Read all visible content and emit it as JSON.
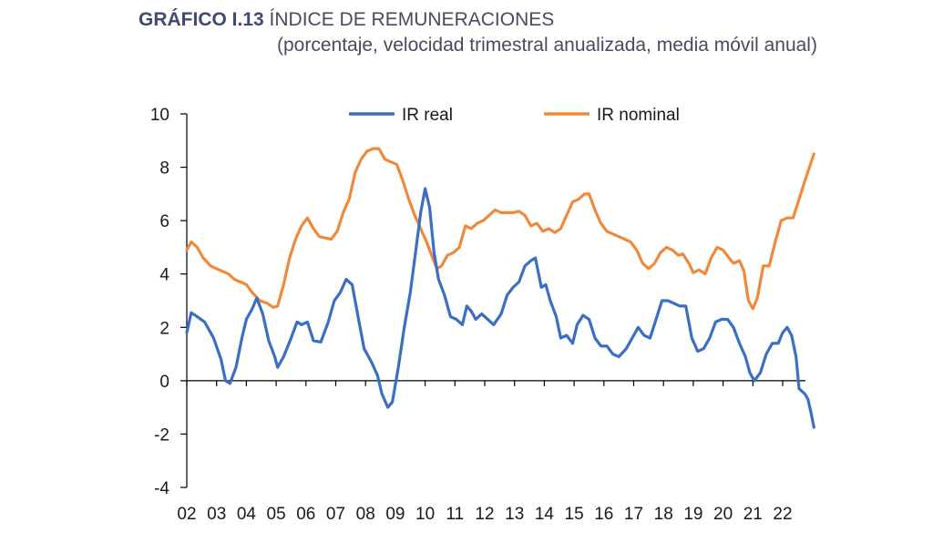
{
  "title": {
    "label": "GRÁFICO I.13",
    "text": "ÍNDICE DE REMUNERACIONES",
    "subtitle": "(porcentaje, velocidad trimestral anualizada, media móvil anual)"
  },
  "chart_data": {
    "type": "line",
    "title": "ÍNDICE DE REMUNERACIONES",
    "subtitle": "(porcentaje, velocidad trimestral anualizada, media móvil anual)",
    "xlabel": "",
    "ylabel": "",
    "ylim": [
      -4,
      10
    ],
    "xlim": [
      2002.0,
      2022.75
    ],
    "yticks": [
      "10",
      "8",
      "6",
      "4",
      "2",
      "0",
      "-2",
      "-4"
    ],
    "ytick_values": [
      10,
      8,
      6,
      4,
      2,
      0,
      -2,
      -4
    ],
    "xtick_labels": [
      "02",
      "03",
      "04",
      "05",
      "06",
      "07",
      "08",
      "09",
      "10",
      "11",
      "12",
      "13",
      "14",
      "15",
      "16",
      "17",
      "18",
      "19",
      "20",
      "21",
      "22"
    ],
    "legend_position": "top",
    "series": [
      {
        "name": "IR real",
        "color": "#3a6fc4",
        "points": [
          [
            2002.0,
            1.8
          ],
          [
            2002.15,
            2.55
          ],
          [
            2002.35,
            2.4
          ],
          [
            2002.6,
            2.2
          ],
          [
            2002.9,
            1.6
          ],
          [
            2003.15,
            0.8
          ],
          [
            2003.3,
            0.0
          ],
          [
            2003.45,
            -0.1
          ],
          [
            2003.65,
            0.5
          ],
          [
            2003.85,
            1.6
          ],
          [
            2004.0,
            2.3
          ],
          [
            2004.2,
            2.7
          ],
          [
            2004.35,
            3.1
          ],
          [
            2004.55,
            2.5
          ],
          [
            2004.75,
            1.5
          ],
          [
            2004.95,
            0.9
          ],
          [
            2005.05,
            0.5
          ],
          [
            2005.25,
            0.9
          ],
          [
            2005.5,
            1.6
          ],
          [
            2005.7,
            2.2
          ],
          [
            2005.85,
            2.1
          ],
          [
            2006.05,
            2.2
          ],
          [
            2006.25,
            1.5
          ],
          [
            2006.5,
            1.45
          ],
          [
            2006.75,
            2.2
          ],
          [
            2006.95,
            3.0
          ],
          [
            2007.15,
            3.3
          ],
          [
            2007.35,
            3.8
          ],
          [
            2007.55,
            3.6
          ],
          [
            2007.75,
            2.4
          ],
          [
            2007.95,
            1.2
          ],
          [
            2008.2,
            0.7
          ],
          [
            2008.4,
            0.2
          ],
          [
            2008.55,
            -0.5
          ],
          [
            2008.75,
            -1.0
          ],
          [
            2008.9,
            -0.8
          ],
          [
            2009.1,
            0.5
          ],
          [
            2009.3,
            2.0
          ],
          [
            2009.5,
            3.3
          ],
          [
            2009.7,
            5.0
          ],
          [
            2009.85,
            6.3
          ],
          [
            2010.0,
            7.2
          ],
          [
            2010.15,
            6.5
          ],
          [
            2010.3,
            4.8
          ],
          [
            2010.45,
            3.8
          ],
          [
            2010.65,
            3.2
          ],
          [
            2010.85,
            2.4
          ],
          [
            2011.05,
            2.3
          ],
          [
            2011.25,
            2.1
          ],
          [
            2011.4,
            2.8
          ],
          [
            2011.55,
            2.6
          ],
          [
            2011.7,
            2.3
          ],
          [
            2011.9,
            2.5
          ],
          [
            2012.1,
            2.3
          ],
          [
            2012.3,
            2.1
          ],
          [
            2012.55,
            2.5
          ],
          [
            2012.75,
            3.2
          ],
          [
            2012.95,
            3.5
          ],
          [
            2013.15,
            3.7
          ],
          [
            2013.35,
            4.3
          ],
          [
            2013.55,
            4.5
          ],
          [
            2013.7,
            4.6
          ],
          [
            2013.9,
            3.5
          ],
          [
            2014.05,
            3.6
          ],
          [
            2014.2,
            3.0
          ],
          [
            2014.4,
            2.4
          ],
          [
            2014.55,
            1.6
          ],
          [
            2014.75,
            1.7
          ],
          [
            2014.95,
            1.4
          ],
          [
            2015.1,
            2.1
          ],
          [
            2015.3,
            2.45
          ],
          [
            2015.5,
            2.3
          ],
          [
            2015.7,
            1.6
          ],
          [
            2015.9,
            1.3
          ],
          [
            2016.1,
            1.3
          ],
          [
            2016.3,
            1.0
          ],
          [
            2016.5,
            0.9
          ],
          [
            2016.75,
            1.2
          ],
          [
            2016.95,
            1.6
          ],
          [
            2017.15,
            2.0
          ],
          [
            2017.35,
            1.7
          ],
          [
            2017.55,
            1.6
          ],
          [
            2017.75,
            2.3
          ],
          [
            2017.95,
            3.0
          ],
          [
            2018.15,
            3.0
          ],
          [
            2018.35,
            2.9
          ],
          [
            2018.55,
            2.8
          ],
          [
            2018.75,
            2.8
          ],
          [
            2018.95,
            1.6
          ],
          [
            2019.15,
            1.1
          ],
          [
            2019.35,
            1.2
          ],
          [
            2019.55,
            1.6
          ],
          [
            2019.75,
            2.2
          ],
          [
            2019.95,
            2.3
          ],
          [
            2020.15,
            2.3
          ],
          [
            2020.35,
            2.0
          ],
          [
            2020.55,
            1.4
          ],
          [
            2020.75,
            0.9
          ],
          [
            2020.9,
            0.3
          ],
          [
            2021.05,
            0.0
          ],
          [
            2021.25,
            0.3
          ],
          [
            2021.45,
            1.0
          ],
          [
            2021.65,
            1.4
          ],
          [
            2021.85,
            1.4
          ],
          [
            2022.0,
            1.8
          ],
          [
            2022.15,
            2.0
          ],
          [
            2022.3,
            1.7
          ],
          [
            2022.45,
            0.9
          ],
          [
            2022.55,
            -0.3
          ],
          [
            2022.65,
            -0.4
          ],
          [
            2022.75,
            -0.5
          ],
          [
            2022.85,
            -0.7
          ],
          [
            2022.95,
            -1.2
          ],
          [
            2023.05,
            -1.75
          ]
        ]
      },
      {
        "name": "IR nominal",
        "color": "#ef8a3c",
        "points": [
          [
            2002.0,
            4.9
          ],
          [
            2002.15,
            5.2
          ],
          [
            2002.35,
            5.0
          ],
          [
            2002.55,
            4.6
          ],
          [
            2002.8,
            4.3
          ],
          [
            2003.0,
            4.2
          ],
          [
            2003.2,
            4.1
          ],
          [
            2003.4,
            4.0
          ],
          [
            2003.6,
            3.8
          ],
          [
            2003.8,
            3.7
          ],
          [
            2004.0,
            3.6
          ],
          [
            2004.2,
            3.3
          ],
          [
            2004.45,
            3.0
          ],
          [
            2004.7,
            2.9
          ],
          [
            2004.9,
            2.75
          ],
          [
            2005.05,
            2.8
          ],
          [
            2005.25,
            3.6
          ],
          [
            2005.45,
            4.6
          ],
          [
            2005.65,
            5.3
          ],
          [
            2005.85,
            5.8
          ],
          [
            2006.05,
            6.1
          ],
          [
            2006.25,
            5.7
          ],
          [
            2006.45,
            5.4
          ],
          [
            2006.65,
            5.35
          ],
          [
            2006.85,
            5.3
          ],
          [
            2007.05,
            5.6
          ],
          [
            2007.25,
            6.3
          ],
          [
            2007.45,
            6.8
          ],
          [
            2007.65,
            7.8
          ],
          [
            2007.85,
            8.3
          ],
          [
            2008.05,
            8.6
          ],
          [
            2008.25,
            8.7
          ],
          [
            2008.45,
            8.7
          ],
          [
            2008.65,
            8.3
          ],
          [
            2008.85,
            8.2
          ],
          [
            2009.05,
            8.1
          ],
          [
            2009.25,
            7.5
          ],
          [
            2009.45,
            6.8
          ],
          [
            2009.65,
            6.2
          ],
          [
            2009.85,
            5.7
          ],
          [
            2010.05,
            5.2
          ],
          [
            2010.25,
            4.6
          ],
          [
            2010.4,
            4.2
          ],
          [
            2010.55,
            4.3
          ],
          [
            2010.75,
            4.7
          ],
          [
            2010.95,
            4.8
          ],
          [
            2011.15,
            5.0
          ],
          [
            2011.35,
            5.8
          ],
          [
            2011.55,
            5.7
          ],
          [
            2011.75,
            5.9
          ],
          [
            2011.95,
            6.0
          ],
          [
            2012.15,
            6.2
          ],
          [
            2012.35,
            6.4
          ],
          [
            2012.55,
            6.3
          ],
          [
            2012.75,
            6.3
          ],
          [
            2012.95,
            6.3
          ],
          [
            2013.15,
            6.35
          ],
          [
            2013.35,
            6.2
          ],
          [
            2013.55,
            5.8
          ],
          [
            2013.75,
            5.9
          ],
          [
            2013.95,
            5.6
          ],
          [
            2014.15,
            5.7
          ],
          [
            2014.35,
            5.55
          ],
          [
            2014.55,
            5.7
          ],
          [
            2014.75,
            6.2
          ],
          [
            2014.95,
            6.7
          ],
          [
            2015.15,
            6.8
          ],
          [
            2015.35,
            7.0
          ],
          [
            2015.5,
            7.0
          ],
          [
            2015.7,
            6.4
          ],
          [
            2015.9,
            5.9
          ],
          [
            2016.1,
            5.6
          ],
          [
            2016.3,
            5.5
          ],
          [
            2016.5,
            5.4
          ],
          [
            2016.7,
            5.3
          ],
          [
            2016.9,
            5.2
          ],
          [
            2017.1,
            4.9
          ],
          [
            2017.3,
            4.4
          ],
          [
            2017.5,
            4.2
          ],
          [
            2017.7,
            4.4
          ],
          [
            2017.9,
            4.8
          ],
          [
            2018.1,
            5.0
          ],
          [
            2018.3,
            4.9
          ],
          [
            2018.5,
            4.7
          ],
          [
            2018.65,
            4.75
          ],
          [
            2018.85,
            4.4
          ],
          [
            2019.0,
            4.05
          ],
          [
            2019.2,
            4.15
          ],
          [
            2019.4,
            4.0
          ],
          [
            2019.6,
            4.6
          ],
          [
            2019.8,
            5.0
          ],
          [
            2020.0,
            4.9
          ],
          [
            2020.2,
            4.6
          ],
          [
            2020.35,
            4.4
          ],
          [
            2020.55,
            4.5
          ],
          [
            2020.7,
            4.1
          ],
          [
            2020.85,
            3.0
          ],
          [
            2021.0,
            2.7
          ],
          [
            2021.15,
            3.1
          ],
          [
            2021.35,
            4.3
          ],
          [
            2021.55,
            4.3
          ],
          [
            2021.75,
            5.2
          ],
          [
            2021.95,
            6.0
          ],
          [
            2022.15,
            6.1
          ],
          [
            2022.35,
            6.1
          ],
          [
            2022.55,
            6.8
          ],
          [
            2022.75,
            7.5
          ],
          [
            2022.9,
            8.0
          ],
          [
            2023.05,
            8.5
          ]
        ]
      }
    ]
  }
}
